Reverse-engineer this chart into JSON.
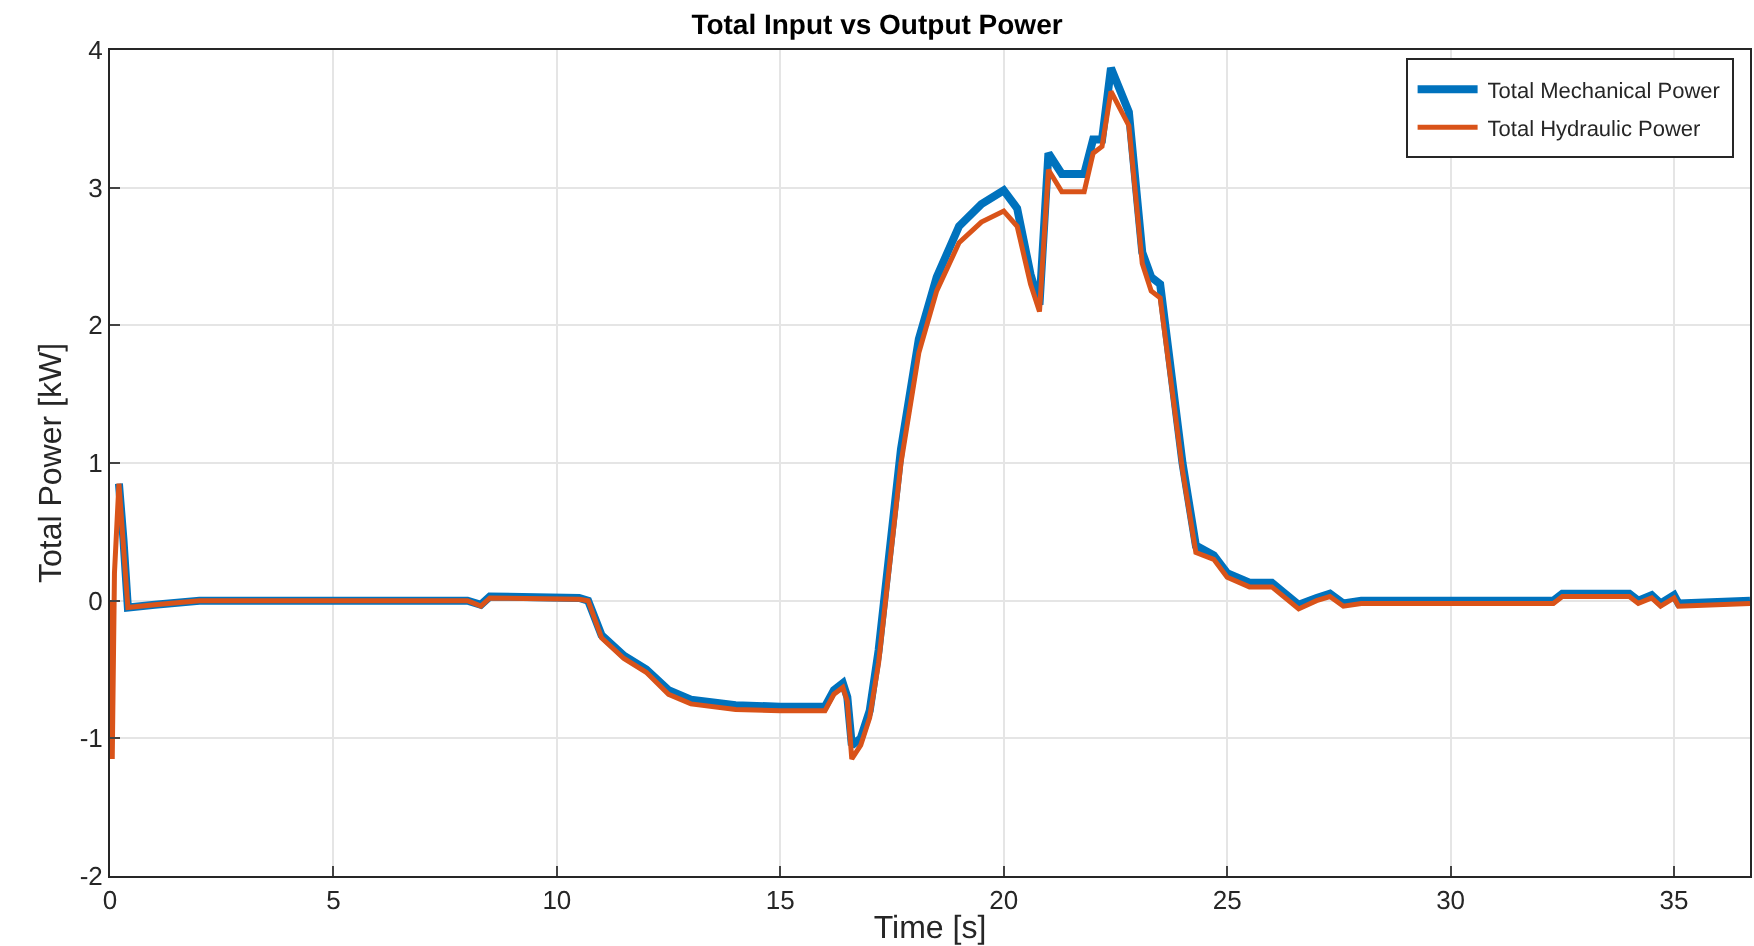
{
  "chart_data": {
    "type": "line",
    "title": "Total Input vs Output Power",
    "xlabel": "Time [s]",
    "ylabel": "Total Power [kW]",
    "x": [
      0,
      0.05,
      0.1,
      0.2,
      0.3,
      0.4,
      1,
      2,
      8,
      8.3,
      8.5,
      10.5,
      10.7,
      11,
      11.5,
      12,
      12.5,
      13,
      14,
      15,
      16,
      16.2,
      16.4,
      16.5,
      16.6,
      16.8,
      17,
      17.2,
      17.7,
      18.1,
      18.5,
      19,
      19.5,
      20,
      20.3,
      20.6,
      20.8,
      21,
      21.3,
      21.8,
      22,
      22.2,
      22.4,
      22.8,
      23.1,
      23.3,
      23.5,
      24,
      24.3,
      24.7,
      25,
      25.5,
      26,
      26.3,
      26.6,
      27,
      27.3,
      27.6,
      28,
      32.3,
      32.5,
      34,
      34.2,
      34.5,
      34.7,
      35,
      35.1,
      36.7
    ],
    "series": [
      {
        "name": "Total Mechanical Power",
        "color": "#0072bd",
        "values": [
          null,
          null,
          null,
          0.85,
          0.45,
          -0.05,
          -0.03,
          0,
          0,
          -0.03,
          0.03,
          0.02,
          0,
          -0.25,
          -0.4,
          -0.5,
          -0.65,
          -0.72,
          -0.76,
          -0.77,
          -0.77,
          -0.65,
          -0.6,
          -0.7,
          -1.05,
          -1.0,
          -0.8,
          -0.36,
          1.1,
          1.9,
          2.35,
          2.72,
          2.88,
          2.98,
          2.85,
          2.37,
          2.15,
          3.25,
          3.1,
          3.1,
          3.35,
          3.35,
          3.87,
          3.55,
          2.53,
          2.35,
          2.3,
          1.0,
          0.4,
          0.33,
          0.2,
          0.13,
          0.13,
          0.05,
          -0.03,
          0.02,
          0.05,
          -0.02,
          0,
          0,
          0.05,
          0.05,
          0,
          0.04,
          -0.02,
          0.04,
          -0.02,
          0
        ]
      },
      {
        "name": "Total Hydraulic Power",
        "color": "#d95319",
        "values": [
          0,
          -1.15,
          0.2,
          0.85,
          0.4,
          -0.05,
          -0.03,
          0,
          0,
          -0.04,
          0.02,
          0.01,
          0,
          -0.27,
          -0.42,
          -0.52,
          -0.68,
          -0.75,
          -0.79,
          -0.8,
          -0.8,
          -0.68,
          -0.63,
          -0.73,
          -1.15,
          -1.05,
          -0.85,
          -0.45,
          1.0,
          1.8,
          2.25,
          2.6,
          2.75,
          2.83,
          2.72,
          2.3,
          2.1,
          3.13,
          2.97,
          2.97,
          3.25,
          3.3,
          3.7,
          3.45,
          2.45,
          2.25,
          2.2,
          0.95,
          0.35,
          0.3,
          0.17,
          0.1,
          0.1,
          0.02,
          -0.06,
          0,
          0.03,
          -0.04,
          -0.02,
          -0.02,
          0.03,
          0.03,
          -0.02,
          0.02,
          -0.04,
          0.02,
          -0.04,
          -0.02
        ]
      }
    ],
    "xlim": [
      0,
      36.7
    ],
    "xticks": [
      0,
      5,
      10,
      15,
      20,
      25,
      30,
      35
    ],
    "ylim": [
      -2,
      4
    ],
    "yticks": [
      -2,
      -1,
      0,
      1,
      2,
      3,
      4
    ],
    "grid": true,
    "legend": "top right",
    "marker": "none",
    "line_style": "solid"
  }
}
